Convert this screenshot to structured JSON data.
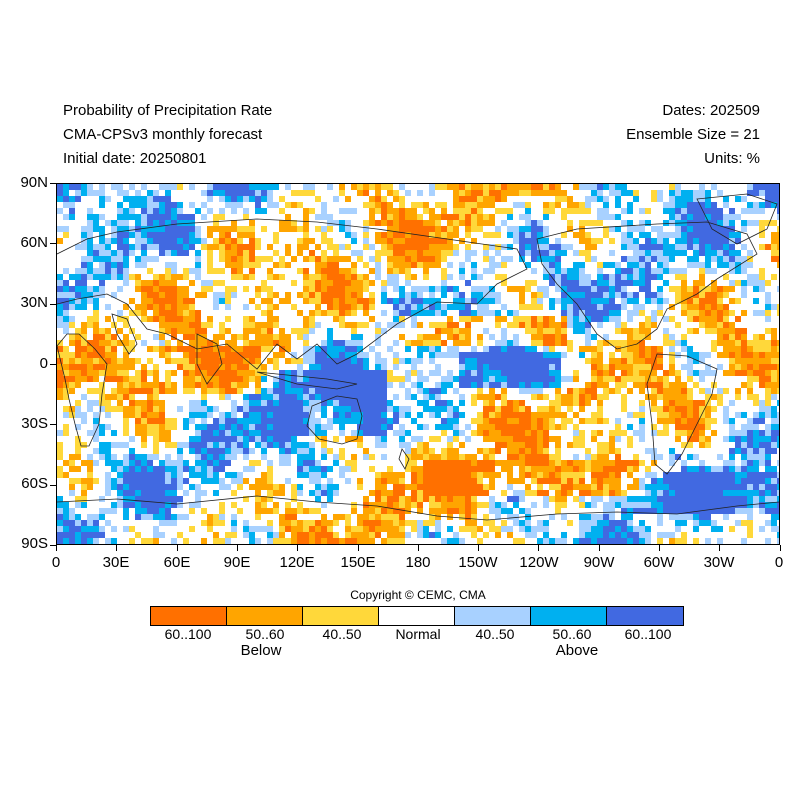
{
  "header": {
    "title_line1": "Probability of Precipitation Rate",
    "title_line2": "CMA-CPSv3 monthly forecast",
    "title_line3": "Initial date: 20250801",
    "dates": "Dates: 202509",
    "ensemble": "Ensemble Size = 21",
    "units": "Units: %"
  },
  "axes": {
    "lat_labels": [
      "90N",
      "60N",
      "30N",
      "0",
      "30S",
      "60S",
      "90S"
    ],
    "lon_labels": [
      "0",
      "30E",
      "60E",
      "90E",
      "120E",
      "150E",
      "180",
      "150W",
      "120W",
      "90W",
      "60W",
      "30W",
      "0"
    ]
  },
  "copyright": "Copyright © CEMC, CMA",
  "legend": {
    "boxes": [
      {
        "label": "60..100",
        "color": "#ff7000"
      },
      {
        "label": "50..60",
        "color": "#ffa500"
      },
      {
        "label": "40..50",
        "color": "#ffd83a"
      },
      {
        "label": "Normal",
        "color": "#ffffff"
      },
      {
        "label": "40..50",
        "color": "#a8d1ff"
      },
      {
        "label": "50..60",
        "color": "#00b0f0"
      },
      {
        "label": "60..100",
        "color": "#4169e1"
      }
    ],
    "below_label": "Below",
    "above_label": "Above"
  }
}
